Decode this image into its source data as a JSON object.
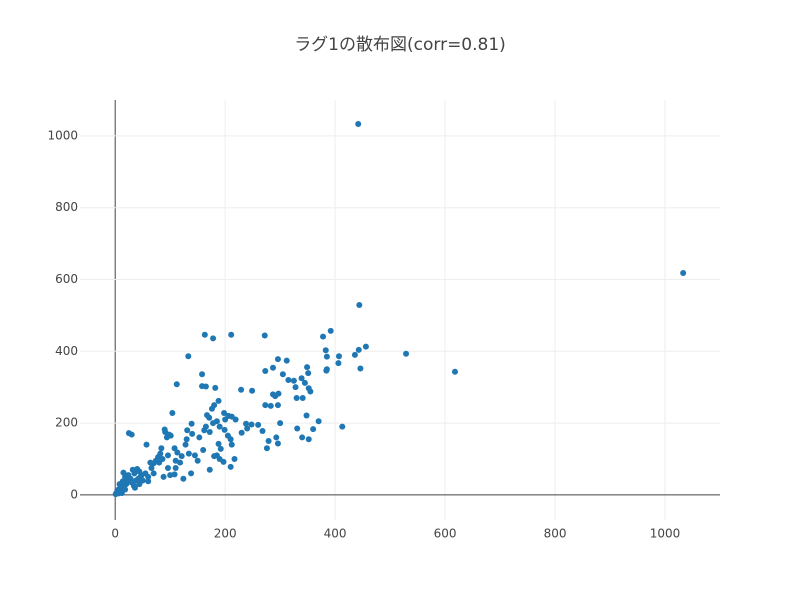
{
  "chart_data": {
    "type": "scatter",
    "title": "ラグ1の散布図(corr=0.81)",
    "color": "#1f77b4",
    "xlim": [
      -64,
      1100
    ],
    "ylim": [
      -70,
      1100
    ],
    "xticks": [
      0,
      200,
      400,
      600,
      800,
      1000
    ],
    "yticks": [
      0,
      200,
      400,
      600,
      800,
      1000
    ],
    "grid": true,
    "x": [
      1033,
      442,
      618,
      529,
      444,
      456,
      443,
      446,
      436,
      407,
      406,
      392,
      378,
      413,
      383,
      385,
      385,
      384,
      163,
      211,
      272,
      178,
      133,
      112,
      158,
      158,
      165,
      182,
      229,
      249,
      273,
      287,
      296,
      312,
      305,
      315,
      325,
      328,
      330,
      339,
      341,
      345,
      349,
      351,
      352,
      355,
      348,
      360,
      370,
      352,
      340,
      331,
      300,
      297,
      291,
      287,
      283,
      296,
      273,
      268,
      260,
      248,
      238,
      230,
      219,
      212,
      206,
      200,
      198,
      188,
      180,
      176,
      171,
      167,
      165,
      162,
      172,
      178,
      185,
      190,
      199,
      205,
      210,
      212,
      217,
      210,
      197,
      190,
      172,
      160,
      153,
      140,
      139,
      131,
      130,
      128,
      121,
      113,
      108,
      104,
      101,
      98,
      94,
      91,
      90,
      84,
      82,
      78,
      74,
      70,
      64,
      57,
      55,
      48,
      46,
      44,
      40,
      35,
      32,
      30,
      25,
      28,
      22,
      20,
      18,
      15,
      12,
      10,
      8,
      6,
      4,
      2,
      1,
      14,
      24,
      38,
      50,
      60,
      66,
      80,
      86,
      96,
      110,
      118,
      124,
      134,
      138,
      145,
      150,
      276,
      279,
      293,
      296,
      240,
      188,
      192,
      185,
      180,
      108,
      100,
      96,
      88,
      44,
      34,
      18,
      12,
      6,
      29,
      36,
      42,
      60,
      70,
      110
    ],
    "y": [
      618,
      1033,
      343,
      393,
      529,
      413,
      404,
      352,
      390,
      386,
      367,
      457,
      441,
      190,
      403,
      385,
      350,
      346,
      446,
      446,
      444,
      436,
      386,
      308,
      336,
      303,
      302,
      298,
      293,
      290,
      345,
      354,
      378,
      374,
      336,
      320,
      318,
      300,
      270,
      325,
      270,
      312,
      356,
      339,
      297,
      288,
      221,
      183,
      205,
      155,
      160,
      185,
      200,
      282,
      275,
      280,
      248,
      250,
      250,
      178,
      195,
      196,
      198,
      173,
      210,
      218,
      220,
      210,
      228,
      262,
      250,
      240,
      215,
      222,
      190,
      180,
      175,
      200,
      205,
      190,
      181,
      165,
      155,
      140,
      100,
      78,
      92,
      100,
      70,
      125,
      160,
      170,
      198,
      180,
      155,
      140,
      108,
      118,
      130,
      228,
      165,
      168,
      160,
      175,
      182,
      130,
      115,
      105,
      95,
      88,
      90,
      140,
      60,
      55,
      50,
      65,
      72,
      60,
      70,
      168,
      172,
      45,
      40,
      30,
      50,
      62,
      25,
      20,
      30,
      15,
      10,
      5,
      2,
      38,
      55,
      40,
      40,
      50,
      75,
      90,
      100,
      110,
      95,
      90,
      45,
      115,
      60,
      110,
      95,
      130,
      150,
      160,
      143,
      185,
      142,
      128,
      110,
      108,
      57,
      55,
      75,
      50,
      30,
      25,
      15,
      5,
      4,
      35,
      20,
      45,
      38,
      60,
      75
    ]
  }
}
